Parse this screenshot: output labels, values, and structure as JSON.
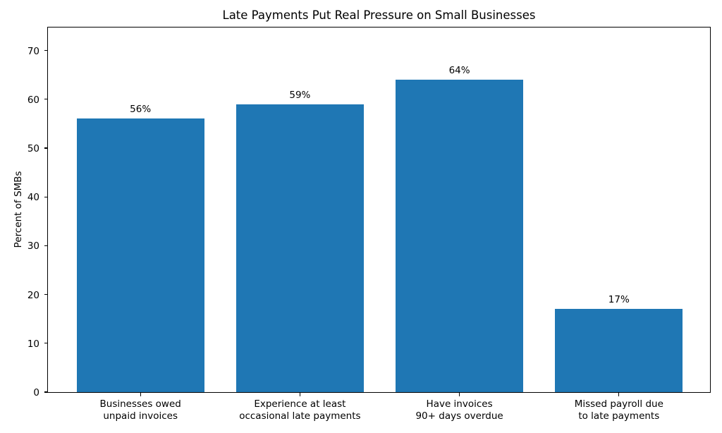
{
  "chart_data": {
    "type": "bar",
    "title": "Late Payments Put Real Pressure on Small Businesses",
    "xlabel": "",
    "ylabel": "Percent of SMBs",
    "categories": [
      "Businesses owed\nunpaid invoices",
      "Experience at least\noccasional late payments",
      "Have invoices\n90+ days overdue",
      "Missed payroll due\nto late payments"
    ],
    "values": [
      56,
      59,
      64,
      17
    ],
    "bar_labels": [
      "56%",
      "59%",
      "64%",
      "17%"
    ],
    "ylim": [
      0,
      75
    ],
    "xlim": [
      -0.58,
      3.58
    ],
    "yticks": [
      0,
      10,
      20,
      30,
      40,
      50,
      60,
      70
    ],
    "bar_width": 0.8,
    "bar_color": "#1f77b4",
    "background_color": "#ffffff",
    "grid": false,
    "legend": "none"
  }
}
